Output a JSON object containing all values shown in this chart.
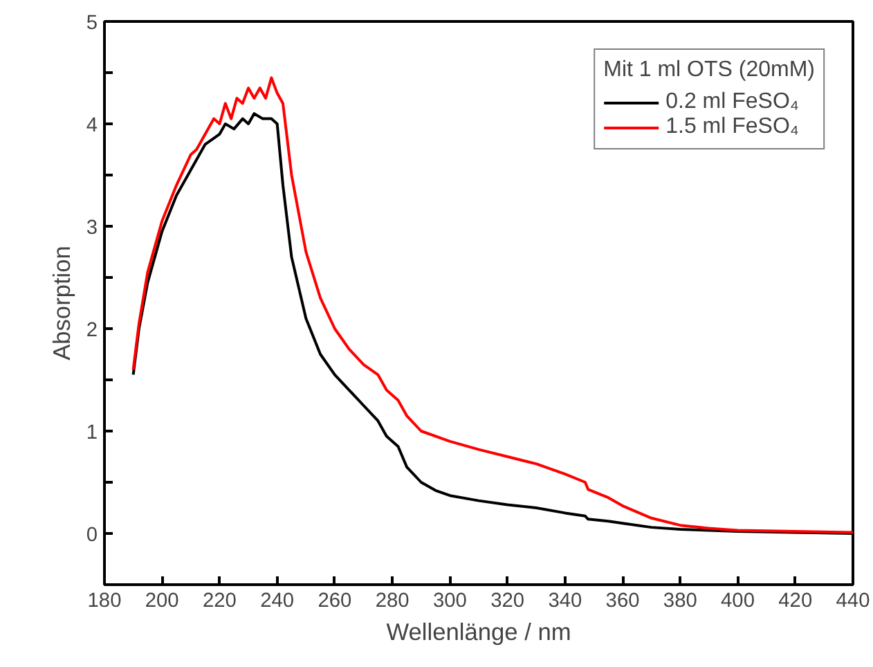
{
  "chart_data": {
    "type": "line",
    "xlabel": "Wellenlänge / nm",
    "ylabel": "Absorption",
    "legend_title": "Mit 1 ml OTS (20mM)",
    "legend": "top right",
    "grid": false,
    "xlim": [
      180,
      440
    ],
    "ylim": [
      -0.5,
      5
    ],
    "xticks": [
      180,
      200,
      220,
      240,
      260,
      280,
      300,
      320,
      340,
      360,
      380,
      400,
      420,
      440
    ],
    "yticks": [
      {
        "value": -0.5,
        "label": null
      },
      0,
      {
        "value": 0.5,
        "label": null
      },
      1,
      {
        "value": 1.5,
        "label": null
      },
      2,
      {
        "value": 2.5,
        "label": null
      },
      3,
      {
        "value": 3.5,
        "label": null
      },
      4,
      {
        "value": 4.5,
        "label": null
      },
      5
    ],
    "series": [
      {
        "name": "0.2 ml FeSO₄",
        "color": "#000000",
        "x": [
          190,
          192,
          195,
          200,
          205,
          210,
          215,
          220,
          222,
          225,
          228,
          230,
          232,
          235,
          238,
          240,
          242,
          245,
          250,
          255,
          260,
          265,
          270,
          275,
          278,
          282,
          285,
          290,
          295,
          300,
          310,
          320,
          330,
          340,
          347,
          348,
          355,
          360,
          370,
          380,
          390,
          400,
          420,
          440
        ],
        "values": [
          1.55,
          2.0,
          2.45,
          2.95,
          3.3,
          3.55,
          3.8,
          3.9,
          4.0,
          3.95,
          4.05,
          4.0,
          4.1,
          4.05,
          4.05,
          4.0,
          3.4,
          2.7,
          2.1,
          1.75,
          1.55,
          1.4,
          1.25,
          1.1,
          0.95,
          0.85,
          0.65,
          0.5,
          0.42,
          0.37,
          0.32,
          0.28,
          0.25,
          0.2,
          0.17,
          0.14,
          0.12,
          0.1,
          0.06,
          0.04,
          0.03,
          0.02,
          0.01,
          0.0
        ]
      },
      {
        "name": "1.5 ml FeSO₄",
        "color": "#ff0000",
        "x": [
          190,
          192,
          195,
          200,
          205,
          210,
          212,
          215,
          218,
          220,
          222,
          224,
          226,
          228,
          230,
          232,
          234,
          236,
          238,
          240,
          242,
          245,
          250,
          255,
          260,
          265,
          270,
          275,
          278,
          282,
          285,
          290,
          300,
          310,
          320,
          330,
          340,
          347,
          348,
          355,
          360,
          370,
          380,
          390,
          400,
          420,
          440
        ],
        "values": [
          1.6,
          2.05,
          2.55,
          3.05,
          3.4,
          3.7,
          3.75,
          3.9,
          4.05,
          4.0,
          4.2,
          4.05,
          4.25,
          4.2,
          4.35,
          4.25,
          4.35,
          4.25,
          4.45,
          4.3,
          4.2,
          3.5,
          2.75,
          2.3,
          2.0,
          1.8,
          1.65,
          1.55,
          1.4,
          1.3,
          1.15,
          1.0,
          0.9,
          0.82,
          0.75,
          0.68,
          0.58,
          0.5,
          0.43,
          0.35,
          0.27,
          0.15,
          0.08,
          0.05,
          0.03,
          0.02,
          0.01
        ]
      }
    ]
  }
}
